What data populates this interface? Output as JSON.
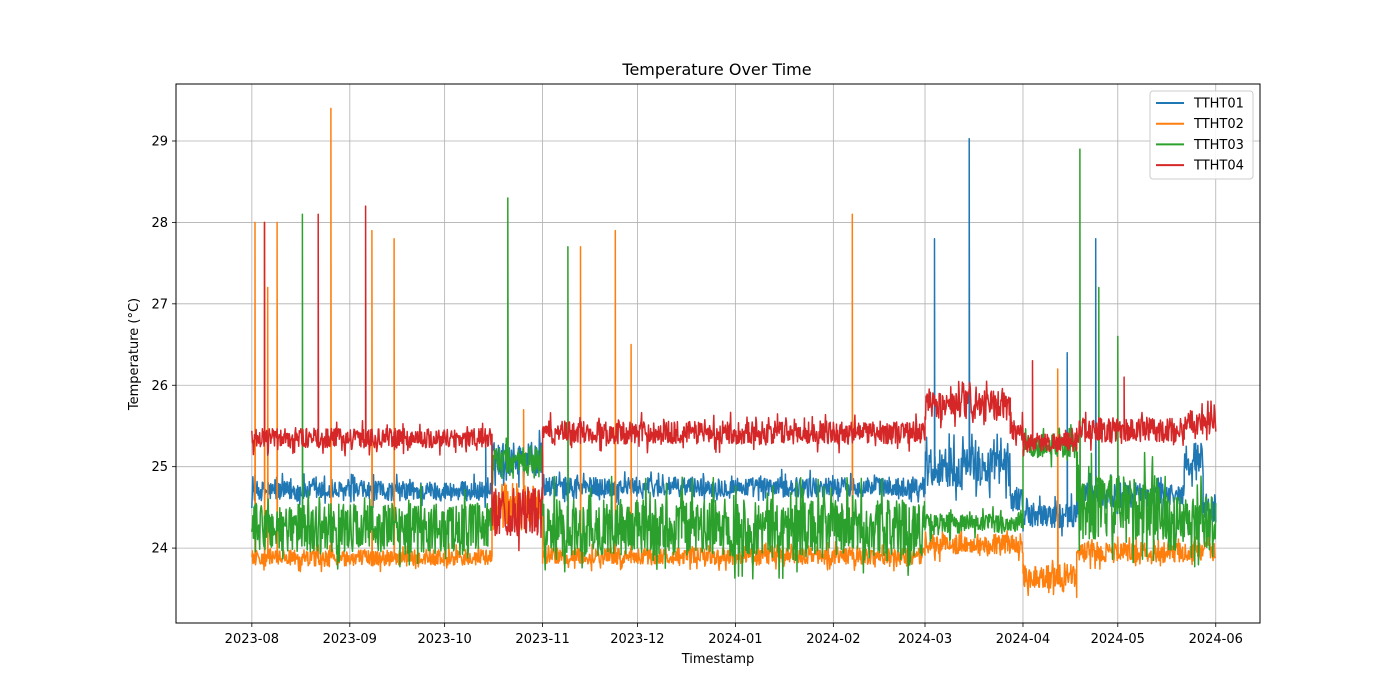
{
  "chart_data": {
    "type": "line",
    "title": "Temperature Over Time",
    "xlabel": "Timestamp",
    "ylabel": "Temperature (°C)",
    "xlim": [
      "2023-07-08",
      "2024-06-15"
    ],
    "ylim": [
      23.08,
      29.7
    ],
    "x_ticks": [
      "2023-08",
      "2023-09",
      "2023-10",
      "2023-11",
      "2023-12",
      "2024-01",
      "2024-02",
      "2024-03",
      "2024-04",
      "2024-05",
      "2024-06"
    ],
    "y_ticks": [
      24,
      25,
      26,
      27,
      28,
      29
    ],
    "grid": true,
    "legend_position": "upper right",
    "series": [
      {
        "name": "TTHT01",
        "color": "#1f77b4",
        "segments": [
          {
            "start": "2023-08-01",
            "end": "2023-10-16",
            "level": 24.7,
            "noise": 0.12
          },
          {
            "start": "2023-10-16",
            "end": "2023-11-01",
            "level": 25.1,
            "noise": 0.2
          },
          {
            "start": "2023-11-01",
            "end": "2024-03-01",
            "level": 24.75,
            "noise": 0.12
          },
          {
            "start": "2024-03-01",
            "end": "2024-03-28",
            "level": 25.0,
            "noise": 0.25
          },
          {
            "start": "2024-03-28",
            "end": "2024-04-01",
            "level": 24.6,
            "noise": 0.15
          },
          {
            "start": "2024-04-01",
            "end": "2024-04-18",
            "level": 24.4,
            "noise": 0.15
          },
          {
            "start": "2024-04-18",
            "end": "2024-05-22",
            "level": 24.65,
            "noise": 0.15
          },
          {
            "start": "2024-05-22",
            "end": "2024-05-28",
            "level": 25.1,
            "noise": 0.2
          },
          {
            "start": "2024-05-28",
            "end": "2024-06-01",
            "level": 24.5,
            "noise": 0.2
          }
        ],
        "spikes": [
          {
            "date": "2023-10-14",
            "value": 25.3
          },
          {
            "date": "2024-03-04",
            "value": 27.8
          },
          {
            "date": "2024-03-15",
            "value": 29.03
          },
          {
            "date": "2024-04-15",
            "value": 26.4
          },
          {
            "date": "2024-04-24",
            "value": 27.8
          }
        ]
      },
      {
        "name": "TTHT02",
        "color": "#ff7f0e",
        "segments": [
          {
            "start": "2023-08-01",
            "end": "2023-10-16",
            "level": 23.88,
            "noise": 0.1
          },
          {
            "start": "2023-10-16",
            "end": "2023-11-01",
            "level": 24.5,
            "noise": 0.3
          },
          {
            "start": "2023-11-01",
            "end": "2024-03-01",
            "level": 23.9,
            "noise": 0.1
          },
          {
            "start": "2024-03-01",
            "end": "2024-04-01",
            "level": 24.05,
            "noise": 0.12
          },
          {
            "start": "2024-04-01",
            "end": "2024-04-18",
            "level": 23.65,
            "noise": 0.15
          },
          {
            "start": "2024-04-18",
            "end": "2024-06-01",
            "level": 23.95,
            "noise": 0.12
          }
        ],
        "spikes": [
          {
            "date": "2023-08-02",
            "value": 28.0
          },
          {
            "date": "2023-08-05",
            "value": 28.0
          },
          {
            "date": "2023-08-06",
            "value": 27.2
          },
          {
            "date": "2023-08-09",
            "value": 28.0
          },
          {
            "date": "2023-08-26",
            "value": 29.4
          },
          {
            "date": "2023-09-08",
            "value": 27.9
          },
          {
            "date": "2023-09-15",
            "value": 27.8
          },
          {
            "date": "2023-10-26",
            "value": 25.7
          },
          {
            "date": "2023-11-13",
            "value": 27.7
          },
          {
            "date": "2023-11-24",
            "value": 27.9
          },
          {
            "date": "2023-11-29",
            "value": 26.5
          },
          {
            "date": "2024-02-07",
            "value": 28.1
          },
          {
            "date": "2024-04-12",
            "value": 26.2
          }
        ]
      },
      {
        "name": "TTHT03",
        "color": "#2ca02c",
        "segments": [
          {
            "start": "2023-08-01",
            "end": "2023-10-16",
            "level": 24.25,
            "noise": 0.3
          },
          {
            "start": "2023-10-16",
            "end": "2023-11-01",
            "level": 25.05,
            "noise": 0.2
          },
          {
            "start": "2023-11-01",
            "end": "2024-03-01",
            "level": 24.25,
            "noise": 0.35
          },
          {
            "start": "2024-03-01",
            "end": "2024-04-01",
            "level": 24.3,
            "noise": 0.12
          },
          {
            "start": "2024-04-01",
            "end": "2024-04-18",
            "level": 25.25,
            "noise": 0.15
          },
          {
            "start": "2024-04-18",
            "end": "2024-05-16",
            "level": 24.5,
            "noise": 0.4
          },
          {
            "start": "2024-05-16",
            "end": "2024-06-01",
            "level": 24.3,
            "noise": 0.35
          }
        ],
        "spikes": [
          {
            "date": "2023-08-17",
            "value": 28.1
          },
          {
            "date": "2023-10-21",
            "value": 28.3
          },
          {
            "date": "2023-11-09",
            "value": 27.7
          },
          {
            "date": "2024-04-19",
            "value": 28.9
          },
          {
            "date": "2024-04-25",
            "value": 27.2
          },
          {
            "date": "2024-05-01",
            "value": 26.6
          }
        ]
      },
      {
        "name": "TTHT04",
        "color": "#d62728",
        "segments": [
          {
            "start": "2023-08-01",
            "end": "2023-10-16",
            "level": 25.35,
            "noise": 0.12
          },
          {
            "start": "2023-10-16",
            "end": "2023-11-01",
            "level": 24.45,
            "noise": 0.3
          },
          {
            "start": "2023-11-01",
            "end": "2024-03-01",
            "level": 25.42,
            "noise": 0.14
          },
          {
            "start": "2024-03-01",
            "end": "2024-03-28",
            "level": 25.75,
            "noise": 0.18
          },
          {
            "start": "2024-03-28",
            "end": "2024-04-01",
            "level": 25.45,
            "noise": 0.15
          },
          {
            "start": "2024-04-01",
            "end": "2024-04-18",
            "level": 25.3,
            "noise": 0.12
          },
          {
            "start": "2024-04-18",
            "end": "2024-05-22",
            "level": 25.45,
            "noise": 0.15
          },
          {
            "start": "2024-05-22",
            "end": "2024-06-01",
            "level": 25.55,
            "noise": 0.15
          }
        ],
        "spikes": [
          {
            "date": "2023-08-05",
            "value": 28.0
          },
          {
            "date": "2023-08-22",
            "value": 28.1
          },
          {
            "date": "2023-09-06",
            "value": 28.2
          },
          {
            "date": "2024-04-04",
            "value": 26.3
          },
          {
            "date": "2024-05-03",
            "value": 26.1
          }
        ]
      }
    ]
  }
}
